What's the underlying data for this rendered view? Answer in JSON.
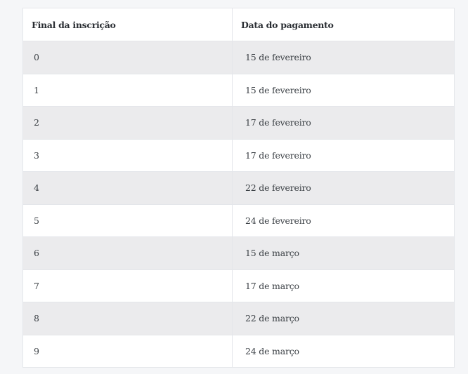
{
  "table": {
    "headers": [
      "Final da inscrição",
      "Data do pagamento"
    ],
    "rows": [
      [
        "0",
        "15 de fevereiro"
      ],
      [
        "1",
        "15 de fevereiro"
      ],
      [
        "2",
        "17 de fevereiro"
      ],
      [
        "3",
        "17 de fevereiro"
      ],
      [
        "4",
        "22 de fevereiro"
      ],
      [
        "5",
        "24 de fevereiro"
      ],
      [
        "6",
        "15 de março"
      ],
      [
        "7",
        "17 de março"
      ],
      [
        "8",
        "22 de março"
      ],
      [
        "9",
        "24 de março"
      ]
    ]
  }
}
